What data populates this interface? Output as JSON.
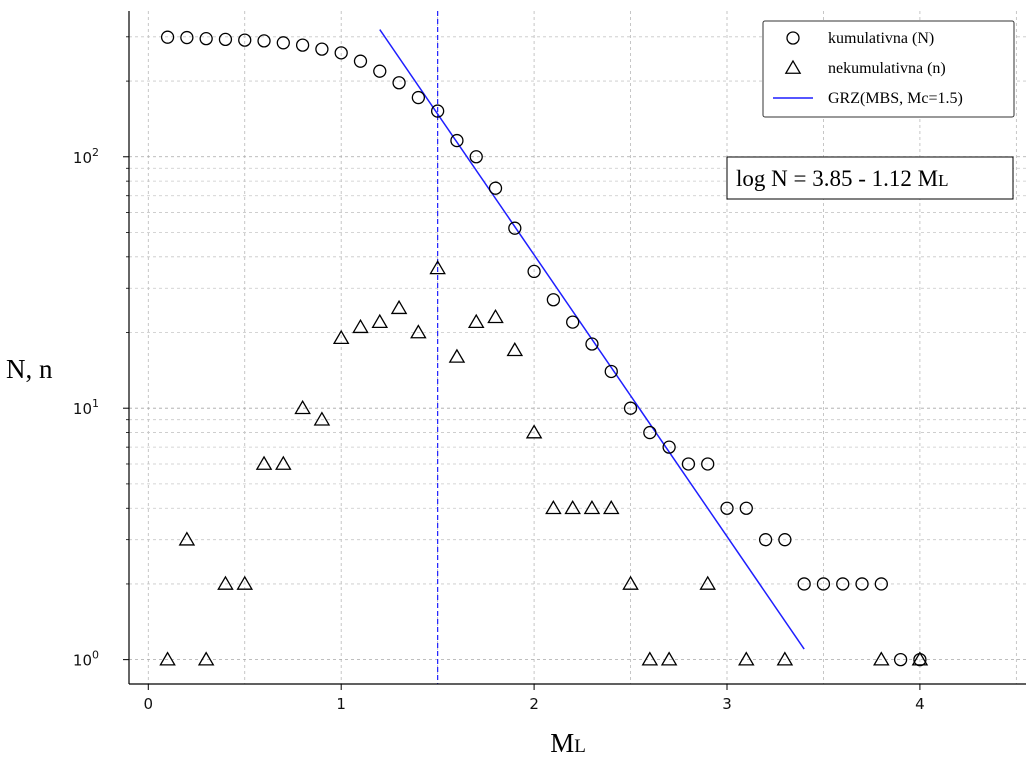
{
  "chart_data": {
    "type": "scatter",
    "yscale": "log",
    "xlim": [
      -0.1,
      4.55
    ],
    "ylim": [
      0.8,
      380
    ],
    "grid": true,
    "xlabel": "ML",
    "ylabel": "N, n",
    "x_ticks": [
      "0",
      "1",
      "2",
      "3",
      "4"
    ],
    "y_ticks": [
      {
        "base": "10",
        "exp": "0"
      },
      {
        "base": "10",
        "exp": "1"
      },
      {
        "base": "10",
        "exp": "2"
      }
    ],
    "legend_placement": "top-right",
    "series": [
      {
        "name": "kumulativna (N)",
        "marker": "circle",
        "color": "#000000",
        "x": [
          0.1,
          0.2,
          0.3,
          0.4,
          0.5,
          0.6,
          0.7,
          0.8,
          0.9,
          1.0,
          1.1,
          1.2,
          1.3,
          1.4,
          1.5,
          1.6,
          1.7,
          1.8,
          1.9,
          2.0,
          2.1,
          2.2,
          2.3,
          2.4,
          2.5,
          2.6,
          2.7,
          2.8,
          2.9,
          3.0,
          3.1,
          3.2,
          3.3,
          3.4,
          3.5,
          3.6,
          3.7,
          3.8,
          3.9,
          4.0
        ],
        "y": [
          299,
          298,
          295,
          293,
          291,
          289,
          284,
          278,
          268,
          259,
          240,
          219,
          197,
          172,
          152,
          116,
          100,
          75,
          52,
          35,
          27,
          22,
          18,
          14,
          10,
          8,
          7,
          6,
          6,
          4,
          4,
          3,
          3,
          2,
          2,
          2,
          2,
          2,
          1,
          1
        ]
      },
      {
        "name": "nekumulativna (n)",
        "marker": "triangle",
        "color": "#000000",
        "x": [
          0.1,
          0.2,
          0.3,
          0.4,
          0.5,
          0.6,
          0.7,
          0.8,
          0.9,
          1.0,
          1.1,
          1.2,
          1.3,
          1.4,
          1.5,
          1.6,
          1.7,
          1.8,
          1.9,
          2.0,
          2.1,
          2.2,
          2.3,
          2.4,
          2.5,
          2.6,
          2.7,
          2.9,
          3.1,
          3.3,
          3.8,
          4.0
        ],
        "y": [
          1,
          3,
          1,
          2,
          2,
          6,
          6,
          10,
          9,
          19,
          21,
          22,
          25,
          20,
          36,
          16,
          22,
          23,
          17,
          8,
          4,
          4,
          4,
          4,
          2,
          1,
          1,
          2,
          1,
          1,
          1,
          1
        ]
      },
      {
        "name": "GRZ(MBS, Mc=1.5)",
        "type": "line",
        "color": "#1f1fff",
        "a": 3.85,
        "b": 1.12,
        "x_range": [
          1.2,
          3.4
        ]
      }
    ],
    "reference_line": {
      "x": 1.5,
      "style": "dashed",
      "color": "#1f1fff"
    },
    "annotation": {
      "main": "log N = 3.85 - 1.12 M",
      "subscript": "L"
    }
  }
}
